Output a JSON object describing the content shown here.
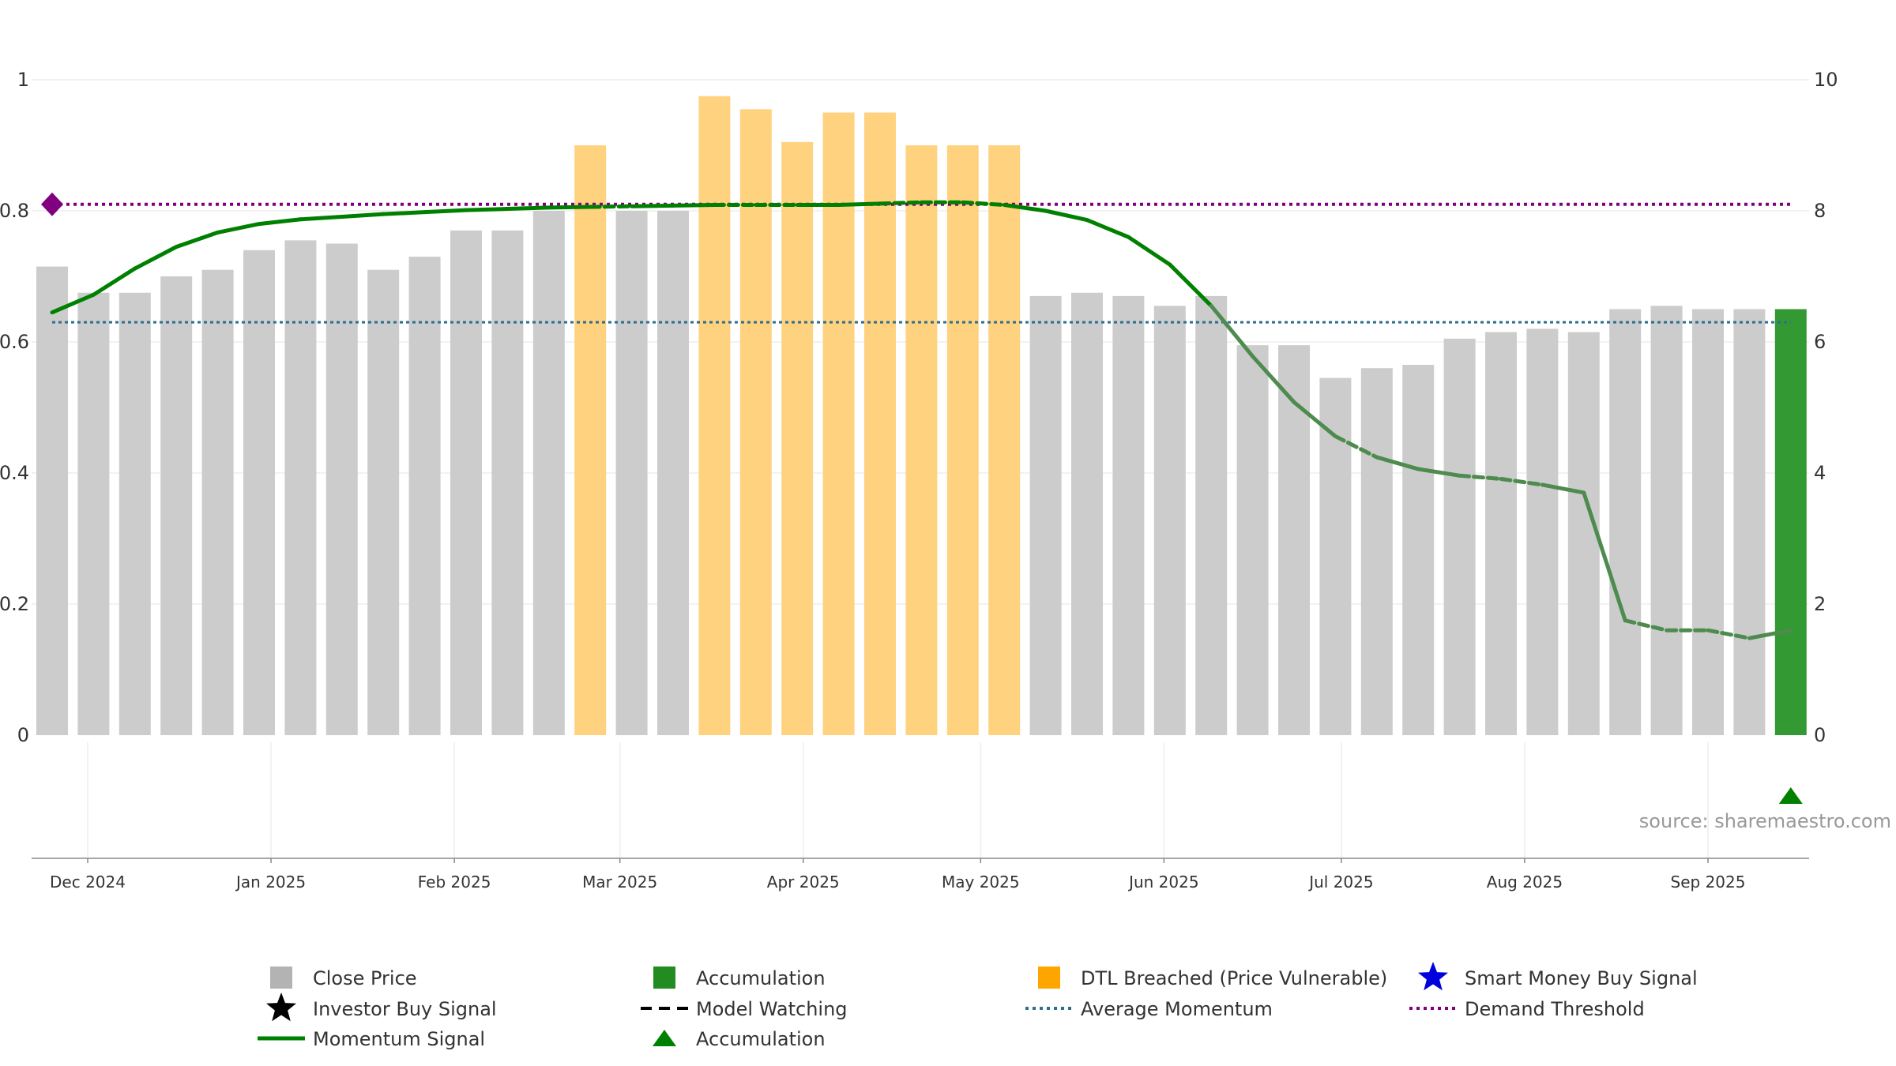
{
  "chart_data": {
    "type": "bar",
    "title": "",
    "xlabel": "",
    "ylabel_left": "",
    "ylabel_right": "",
    "left_axis": {
      "range": [
        0,
        1
      ],
      "ticks": [
        {
          "value": 0,
          "label": "0"
        },
        {
          "value": 0.2,
          "label": "0.2"
        },
        {
          "value": 0.4,
          "label": "0.4"
        },
        {
          "value": 0.6,
          "label": "0.6"
        },
        {
          "value": 0.8,
          "label": "0.8"
        },
        {
          "value": 1,
          "label": "1"
        }
      ]
    },
    "right_axis": {
      "range": [
        0,
        10
      ],
      "ticks": [
        {
          "value": 0,
          "label": "0"
        },
        {
          "value": 2,
          "label": "2"
        },
        {
          "value": 4,
          "label": "4"
        },
        {
          "value": 6,
          "label": "6"
        },
        {
          "value": 8,
          "label": "8"
        },
        {
          "value": 10,
          "label": "10"
        }
      ]
    },
    "x_ticks": [
      {
        "date": "2024-12-01",
        "label": "Dec 2024"
      },
      {
        "date": "2025-01-01",
        "label": "Jan 2025"
      },
      {
        "date": "2025-02-01",
        "label": "Feb 2025"
      },
      {
        "date": "2025-03-01",
        "label": "Mar 2025"
      },
      {
        "date": "2025-04-01",
        "label": "Apr 2025"
      },
      {
        "date": "2025-05-01",
        "label": "May 2025"
      },
      {
        "date": "2025-06-01",
        "label": "Jun 2025"
      },
      {
        "date": "2025-07-01",
        "label": "Jul 2025"
      },
      {
        "date": "2025-08-01",
        "label": "Aug 2025"
      },
      {
        "date": "2025-09-01",
        "label": "Sep 2025"
      }
    ],
    "x_range": [
      "2024-11-22",
      "2025-09-17"
    ],
    "grid": true,
    "legend_position": "bottom",
    "weeks": [
      {
        "date": "2024-11-25",
        "close": 7.15,
        "state": "normal",
        "momentum": 0.645,
        "line": "solid"
      },
      {
        "date": "2024-12-02",
        "close": 6.75,
        "state": "normal",
        "momentum": 0.672,
        "line": "solid"
      },
      {
        "date": "2024-12-09",
        "close": 6.75,
        "state": "normal",
        "momentum": 0.712,
        "line": "solid"
      },
      {
        "date": "2024-12-16",
        "close": 7.0,
        "state": "normal",
        "momentum": 0.745,
        "line": "solid"
      },
      {
        "date": "2024-12-23",
        "close": 7.1,
        "state": "normal",
        "momentum": 0.767,
        "line": "solid"
      },
      {
        "date": "2024-12-30",
        "close": 7.4,
        "state": "normal",
        "momentum": 0.78,
        "line": "solid"
      },
      {
        "date": "2025-01-06",
        "close": 7.55,
        "state": "normal",
        "momentum": 0.787,
        "line": "solid"
      },
      {
        "date": "2025-01-13",
        "close": 7.5,
        "state": "normal",
        "momentum": 0.791,
        "line": "solid"
      },
      {
        "date": "2025-01-20",
        "close": 7.1,
        "state": "normal",
        "momentum": 0.795,
        "line": "solid"
      },
      {
        "date": "2025-01-27",
        "close": 7.3,
        "state": "normal",
        "momentum": 0.798,
        "line": "solid"
      },
      {
        "date": "2025-02-03",
        "close": 7.7,
        "state": "normal",
        "momentum": 0.801,
        "line": "solid"
      },
      {
        "date": "2025-02-10",
        "close": 7.7,
        "state": "normal",
        "momentum": 0.803,
        "line": "solid"
      },
      {
        "date": "2025-02-17",
        "close": 8.0,
        "state": "normal",
        "momentum": 0.805,
        "line": "solid"
      },
      {
        "date": "2025-02-24",
        "close": 9.0,
        "state": "dtl",
        "momentum": 0.806,
        "line": "solid"
      },
      {
        "date": "2025-03-03",
        "close": 8.0,
        "state": "normal",
        "momentum": 0.807,
        "line": "dashed"
      },
      {
        "date": "2025-03-10",
        "close": 8.0,
        "state": "normal",
        "momentum": 0.808,
        "line": "solid"
      },
      {
        "date": "2025-03-17",
        "close": 9.75,
        "state": "dtl",
        "momentum": 0.809,
        "line": "solid"
      },
      {
        "date": "2025-03-24",
        "close": 9.55,
        "state": "dtl",
        "momentum": 0.809,
        "line": "dashed"
      },
      {
        "date": "2025-03-31",
        "close": 9.05,
        "state": "dtl",
        "momentum": 0.809,
        "line": "dashed"
      },
      {
        "date": "2025-04-07",
        "close": 9.5,
        "state": "dtl",
        "momentum": 0.809,
        "line": "solid"
      },
      {
        "date": "2025-04-14",
        "close": 9.5,
        "state": "dtl",
        "momentum": 0.811,
        "line": "solid"
      },
      {
        "date": "2025-04-21",
        "close": 9.0,
        "state": "dtl",
        "momentum": 0.813,
        "line": "dashed"
      },
      {
        "date": "2025-04-28",
        "close": 9.0,
        "state": "dtl",
        "momentum": 0.813,
        "line": "dashed"
      },
      {
        "date": "2025-05-05",
        "close": 9.0,
        "state": "dtl",
        "momentum": 0.809,
        "line": "dashed"
      },
      {
        "date": "2025-05-12",
        "close": 6.7,
        "state": "normal",
        "momentum": 0.8,
        "line": "solid"
      },
      {
        "date": "2025-05-19",
        "close": 6.75,
        "state": "normal",
        "momentum": 0.786,
        "line": "solid"
      },
      {
        "date": "2025-05-26",
        "close": 6.7,
        "state": "normal",
        "momentum": 0.76,
        "line": "solid"
      },
      {
        "date": "2025-06-02",
        "close": 6.55,
        "state": "normal",
        "momentum": 0.718,
        "line": "solid"
      },
      {
        "date": "2025-06-09",
        "close": 6.7,
        "state": "normal",
        "momentum": 0.655,
        "line": "solid"
      },
      {
        "date": "2025-06-16",
        "close": 5.95,
        "state": "normal",
        "momentum": 0.578,
        "line": "solid"
      },
      {
        "date": "2025-06-23",
        "close": 5.95,
        "state": "normal",
        "momentum": 0.508,
        "line": "solid"
      },
      {
        "date": "2025-06-30",
        "close": 5.45,
        "state": "normal",
        "momentum": 0.456,
        "line": "solid"
      },
      {
        "date": "2025-07-07",
        "close": 5.6,
        "state": "normal",
        "momentum": 0.424,
        "line": "dashed"
      },
      {
        "date": "2025-07-14",
        "close": 5.65,
        "state": "normal",
        "momentum": 0.406,
        "line": "solid"
      },
      {
        "date": "2025-07-21",
        "close": 6.05,
        "state": "normal",
        "momentum": 0.396,
        "line": "solid"
      },
      {
        "date": "2025-07-28",
        "close": 6.15,
        "state": "normal",
        "momentum": 0.391,
        "line": "dashed"
      },
      {
        "date": "2025-08-04",
        "close": 6.2,
        "state": "normal",
        "momentum": 0.382,
        "line": "dashed"
      },
      {
        "date": "2025-08-11",
        "close": 6.15,
        "state": "normal",
        "momentum": 0.37,
        "line": "solid"
      },
      {
        "date": "2025-08-18",
        "close": 6.5,
        "state": "normal",
        "momentum": 0.175,
        "line": "solid"
      },
      {
        "date": "2025-08-25",
        "close": 6.55,
        "state": "normal",
        "momentum": 0.16,
        "line": "dashed"
      },
      {
        "date": "2025-09-01",
        "close": 6.5,
        "state": "normal",
        "momentum": 0.16,
        "line": "dashed"
      },
      {
        "date": "2025-09-08",
        "close": 6.5,
        "state": "normal",
        "momentum": 0.148,
        "line": "dashed"
      },
      {
        "date": "2025-09-15",
        "close": 6.5,
        "state": "accumulation",
        "momentum": 0.16,
        "line": "solid"
      }
    ],
    "average_momentum": 0.63,
    "demand_threshold": 0.81,
    "threshold_marker_date": "2024-11-25",
    "accumulation_marker_date": "2025-09-15",
    "colors": {
      "close": "#cccccc",
      "dtl": "#ffd280",
      "accumulation": "#339933",
      "momentum": "#008000",
      "momentum_late": "#4e8b4e",
      "average": "#2e6f8e",
      "threshold": "#800080",
      "accumulation_marker": "#008000"
    }
  },
  "source_note": "source: sharemaestro.com",
  "legend": [
    {
      "label": "Close Price",
      "icon": "square",
      "color": "#b3b3b3"
    },
    {
      "label": "Accumulation",
      "icon": "square",
      "color": "#228b22"
    },
    {
      "label": "DTL Breached (Price Vulnerable)",
      "icon": "square",
      "color": "#ffa500"
    },
    {
      "label": "Smart Money Buy Signal",
      "icon": "star",
      "color": "#0000dd"
    },
    {
      "label": "Investor Buy Signal",
      "icon": "star",
      "color": "#000000"
    },
    {
      "label": "Model Watching",
      "icon": "dashed-line",
      "color": "#000000"
    },
    {
      "label": "Average Momentum",
      "icon": "dotted-line",
      "color": "#2e6f8e"
    },
    {
      "label": "Demand Threshold",
      "icon": "dotted-line",
      "color": "#800080"
    },
    {
      "label": "Momentum Signal",
      "icon": "solid-line",
      "color": "#008000"
    },
    {
      "label": "Accumulation",
      "icon": "triangle",
      "color": "#008000"
    }
  ]
}
